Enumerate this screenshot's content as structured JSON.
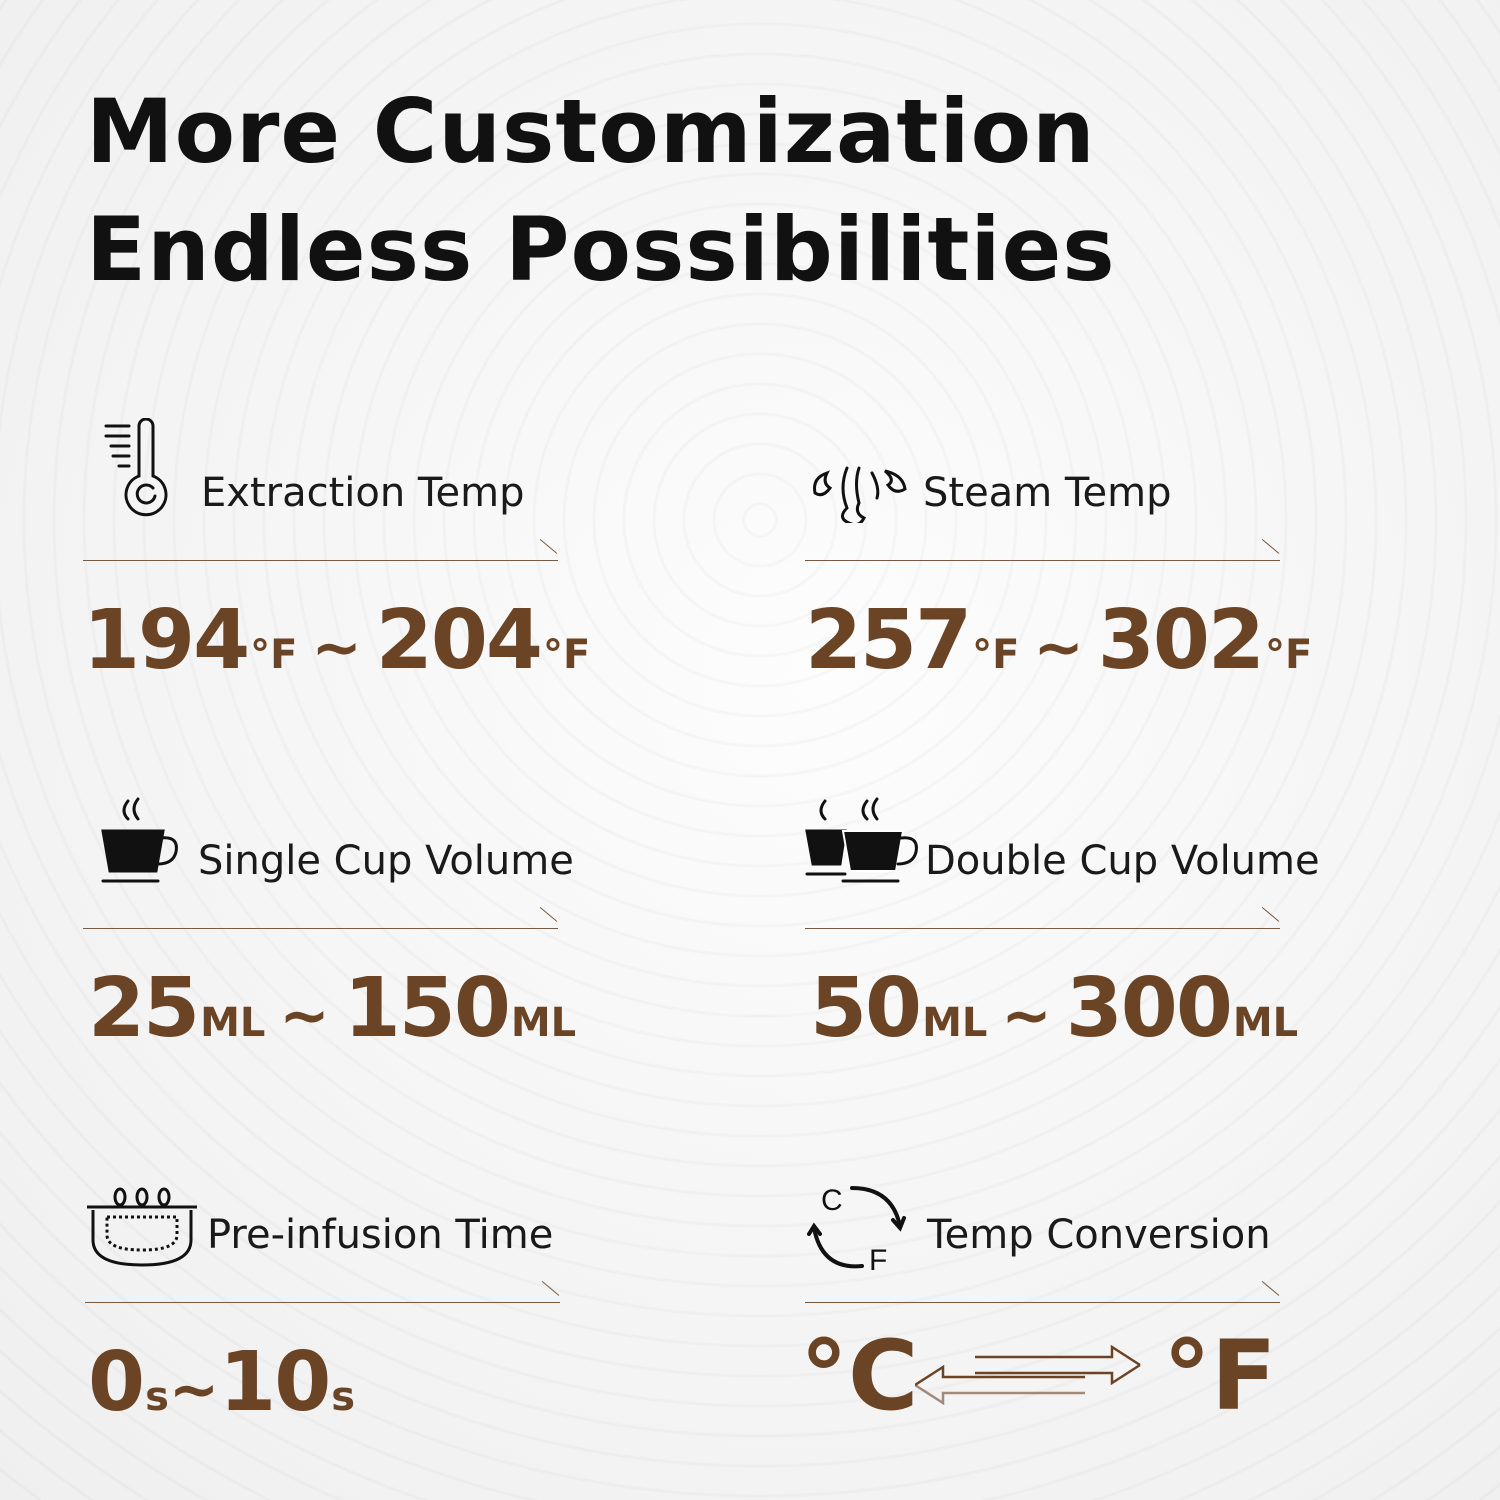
{
  "title": {
    "line1": "More Customization",
    "line2": "Endless Possibilities"
  },
  "accent_color": "#6b4426",
  "features": [
    {
      "icon": "thermometer-icon",
      "label": "Extraction Temp",
      "min": "194",
      "max": "204",
      "unit": "°F",
      "sep": "~"
    },
    {
      "icon": "steam-icon",
      "label": "Steam Temp",
      "min": "257",
      "max": "302",
      "unit": "°F",
      "sep": "~"
    },
    {
      "icon": "single-cup-icon",
      "label": "Single Cup Volume",
      "min": "25",
      "max": "150",
      "unit": "ML",
      "sep": "~"
    },
    {
      "icon": "double-cup-icon",
      "label": "Double Cup Volume",
      "min": "50",
      "max": "300",
      "unit": "ML",
      "sep": "~"
    },
    {
      "icon": "pre-infusion-icon",
      "label": "Pre-infusion Time",
      "min": "0",
      "max": "10",
      "unit": "s",
      "sep": "~"
    },
    {
      "icon": "temp-conversion-icon",
      "label": "Temp Conversion",
      "from": "°C",
      "to": "°F",
      "icon_c": "C",
      "icon_f": "F"
    }
  ]
}
